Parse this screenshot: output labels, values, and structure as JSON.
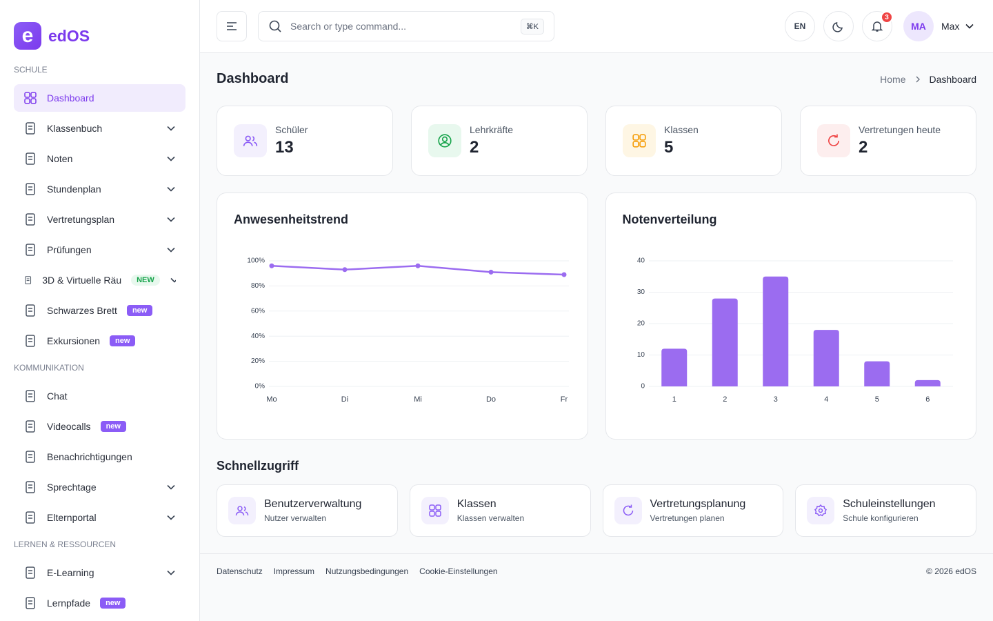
{
  "sidebar": {
    "logo_letter": "e",
    "brand": "edOS",
    "sections": [
      {
        "title": "SCHULE",
        "items": [
          {
            "label": "Dashboard",
            "active": true
          },
          {
            "label": "Klassenbuch",
            "submenu": true
          },
          {
            "label": "Noten",
            "submenu": true
          },
          {
            "label": "Stundenplan",
            "submenu": true
          },
          {
            "label": "Vertretungsplan",
            "submenu": true
          },
          {
            "label": "Prüfungen",
            "submenu": true
          },
          {
            "label": "3D & Virtuelle Räu",
            "submenu": true,
            "badge": "NEW",
            "badge_style": "soft"
          },
          {
            "label": "Schwarzes Brett",
            "badge": "new",
            "badge_style": "solid"
          },
          {
            "label": "Exkursionen",
            "badge": "new",
            "badge_style": "solid"
          }
        ]
      },
      {
        "title": "KOMMUNIKATION",
        "items": [
          {
            "label": "Chat"
          },
          {
            "label": "Videocalls",
            "badge": "new",
            "badge_style": "solid"
          },
          {
            "label": "Benachrichtigungen"
          },
          {
            "label": "Sprechtage",
            "submenu": true
          },
          {
            "label": "Elternportal",
            "submenu": true
          }
        ]
      },
      {
        "title": "LERNEN & RESSOURCEN",
        "items": [
          {
            "label": "E-Learning",
            "submenu": true
          },
          {
            "label": "Lernpfade",
            "badge": "new",
            "badge_style": "solid"
          }
        ]
      }
    ]
  },
  "topbar": {
    "search_placeholder": "Search or type command...",
    "shortcut": "⌘K",
    "language": "EN",
    "notifications": "3",
    "avatar": "MA",
    "user": "Max"
  },
  "header": {
    "title": "Dashboard",
    "breadcrumb": [
      "Home",
      "Dashboard"
    ]
  },
  "stats": [
    {
      "label": "Schüler",
      "value": "13"
    },
    {
      "label": "Lehrkräfte",
      "value": "2"
    },
    {
      "label": "Klassen",
      "value": "5"
    },
    {
      "label": "Vertretungen heute",
      "value": "2"
    }
  ],
  "chart_data": [
    {
      "type": "line",
      "title": "Anwesenheitstrend",
      "categories": [
        "Mo",
        "Di",
        "Mi",
        "Do",
        "Fr"
      ],
      "values": [
        96,
        93,
        96,
        91,
        89
      ],
      "color": "#9b6cf0",
      "ylim": [
        0,
        100
      ],
      "yticks": [
        {
          "value": 0,
          "label": "0%"
        },
        {
          "value": 20,
          "label": "20%"
        },
        {
          "value": 40,
          "label": "40%"
        },
        {
          "value": 60,
          "label": "60%"
        },
        {
          "value": 80,
          "label": "80%"
        },
        {
          "value": 100,
          "label": "100%"
        }
      ],
      "grid": true
    },
    {
      "type": "bar",
      "title": "Notenverteilung",
      "categories": [
        "1",
        "2",
        "3",
        "4",
        "5",
        "6"
      ],
      "values": [
        12,
        28,
        35,
        18,
        8,
        2
      ],
      "color": "#9b6cf0",
      "ylim": [
        0,
        40
      ],
      "yticks": [
        0,
        10,
        20,
        30,
        40
      ],
      "grid": true
    }
  ],
  "quick_access": {
    "title": "Schnellzugriff",
    "cards": [
      {
        "title": "Benutzerverwaltung",
        "subtitle": "Nutzer verwalten"
      },
      {
        "title": "Klassen",
        "subtitle": "Klassen verwalten"
      },
      {
        "title": "Vertretungsplanung",
        "subtitle": "Vertretungen planen"
      },
      {
        "title": "Schuleinstellungen",
        "subtitle": "Schule konfigurieren"
      }
    ]
  },
  "footer": {
    "links": [
      "Datenschutz",
      "Impressum",
      "Nutzungsbedingungen",
      "Cookie-Einstellungen"
    ],
    "copyright": "© 2026 edOS"
  }
}
